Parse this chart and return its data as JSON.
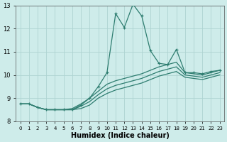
{
  "xlabel": "Humidex (Indice chaleur)",
  "xlim": [
    -0.5,
    23.5
  ],
  "ylim": [
    8,
    13
  ],
  "yticks": [
    8,
    9,
    10,
    11,
    12,
    13
  ],
  "xticks": [
    0,
    1,
    2,
    3,
    4,
    5,
    6,
    7,
    8,
    9,
    10,
    11,
    12,
    13,
    14,
    15,
    16,
    17,
    18,
    19,
    20,
    21,
    22,
    23
  ],
  "xtick_labels": [
    "0",
    "1",
    "2",
    "3",
    "4",
    "5",
    "6",
    "7",
    "8",
    "9",
    "10",
    "11",
    "12",
    "13",
    "14",
    "15",
    "16",
    "17",
    "18",
    "19",
    "20",
    "21",
    "22",
    "23"
  ],
  "background_color": "#ceecea",
  "grid_color": "#aed4d2",
  "line_color": "#2e7d70",
  "lines": [
    {
      "x": [
        0,
        1,
        2,
        3,
        4,
        5,
        6,
        7,
        8,
        9,
        10,
        11,
        12,
        13,
        14,
        15,
        16,
        17,
        18,
        19,
        20,
        21,
        22,
        23
      ],
      "y": [
        8.75,
        8.75,
        8.6,
        8.5,
        8.5,
        8.5,
        8.5,
        8.7,
        9.0,
        9.5,
        10.1,
        12.65,
        12.05,
        13.05,
        12.55,
        11.05,
        10.5,
        10.45,
        11.1,
        10.1,
        10.1,
        10.05,
        10.15,
        10.2
      ],
      "marker": "+",
      "linestyle": "-",
      "linewidth": 0.9,
      "markersize": 3.5
    },
    {
      "x": [
        0,
        1,
        2,
        3,
        4,
        5,
        6,
        7,
        8,
        9,
        10,
        11,
        12,
        13,
        14,
        15,
        16,
        17,
        18,
        19,
        20,
        21,
        22,
        23
      ],
      "y": [
        8.75,
        8.75,
        8.6,
        8.5,
        8.5,
        8.5,
        8.55,
        8.75,
        9.0,
        9.3,
        9.6,
        9.75,
        9.85,
        9.95,
        10.05,
        10.2,
        10.35,
        10.45,
        10.55,
        10.1,
        10.05,
        10.0,
        10.1,
        10.2
      ],
      "marker": null,
      "linestyle": "-",
      "linewidth": 0.9
    },
    {
      "x": [
        0,
        1,
        2,
        3,
        4,
        5,
        6,
        7,
        8,
        9,
        10,
        11,
        12,
        13,
        14,
        15,
        16,
        17,
        18,
        19,
        20,
        21,
        22,
        23
      ],
      "y": [
        8.75,
        8.75,
        8.6,
        8.5,
        8.5,
        8.5,
        8.5,
        8.65,
        8.85,
        9.15,
        9.4,
        9.55,
        9.65,
        9.75,
        9.85,
        10.0,
        10.15,
        10.25,
        10.35,
        10.0,
        9.95,
        9.9,
        10.0,
        10.1
      ],
      "marker": null,
      "linestyle": "-",
      "linewidth": 0.9
    },
    {
      "x": [
        0,
        1,
        2,
        3,
        4,
        5,
        6,
        7,
        8,
        9,
        10,
        11,
        12,
        13,
        14,
        15,
        16,
        17,
        18,
        19,
        20,
        21,
        22,
        23
      ],
      "y": [
        8.75,
        8.75,
        8.6,
        8.5,
        8.5,
        8.5,
        8.5,
        8.55,
        8.7,
        9.0,
        9.2,
        9.35,
        9.45,
        9.55,
        9.65,
        9.8,
        9.95,
        10.05,
        10.15,
        9.9,
        9.85,
        9.8,
        9.9,
        10.0
      ],
      "marker": null,
      "linestyle": "-",
      "linewidth": 0.9
    }
  ]
}
